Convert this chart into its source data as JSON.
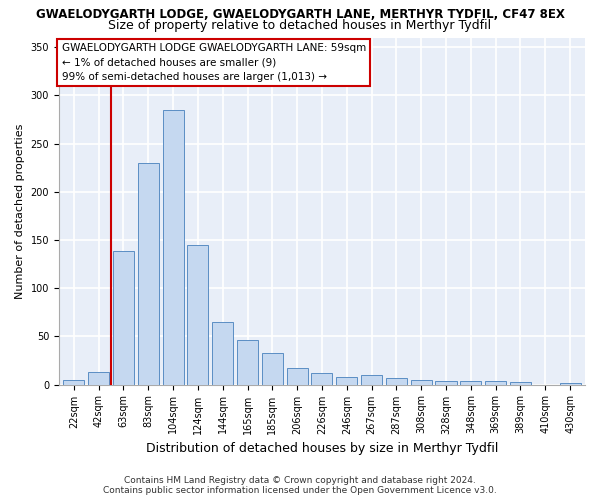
{
  "title_line1": "GWAELODYGARTH LODGE, GWAELODYGARTH LANE, MERTHYR TYDFIL, CF47 8EX",
  "title_line2": "Size of property relative to detached houses in Merthyr Tydfil",
  "xlabel": "Distribution of detached houses by size in Merthyr Tydfil",
  "ylabel": "Number of detached properties",
  "categories": [
    "22sqm",
    "42sqm",
    "63sqm",
    "83sqm",
    "104sqm",
    "124sqm",
    "144sqm",
    "165sqm",
    "185sqm",
    "206sqm",
    "226sqm",
    "246sqm",
    "267sqm",
    "287sqm",
    "308sqm",
    "328sqm",
    "348sqm",
    "369sqm",
    "389sqm",
    "410sqm",
    "430sqm"
  ],
  "values": [
    5,
    13,
    139,
    230,
    285,
    145,
    65,
    46,
    33,
    17,
    12,
    8,
    10,
    7,
    5,
    4,
    4,
    4,
    3,
    0,
    2
  ],
  "bar_color": "#c5d8f0",
  "bar_edge_color": "#5b8ec4",
  "vline_color": "#cc0000",
  "annotation_text": "GWAELODYGARTH LODGE GWAELODYGARTH LANE: 59sqm\n← 1% of detached houses are smaller (9)\n99% of semi-detached houses are larger (1,013) →",
  "annotation_box_color": "#cc0000",
  "annotation_bg": "#ffffff",
  "ylim": [
    0,
    360
  ],
  "yticks": [
    0,
    50,
    100,
    150,
    200,
    250,
    300,
    350
  ],
  "plot_bg_color": "#e8eef8",
  "fig_bg_color": "#ffffff",
  "grid_color": "#ffffff",
  "footer_line1": "Contains HM Land Registry data © Crown copyright and database right 2024.",
  "footer_line2": "Contains public sector information licensed under the Open Government Licence v3.0.",
  "title_fontsize": 8.5,
  "subtitle_fontsize": 9,
  "ylabel_fontsize": 8,
  "xlabel_fontsize": 9,
  "tick_fontsize": 7,
  "annotation_fontsize": 7.5,
  "footer_fontsize": 6.5
}
